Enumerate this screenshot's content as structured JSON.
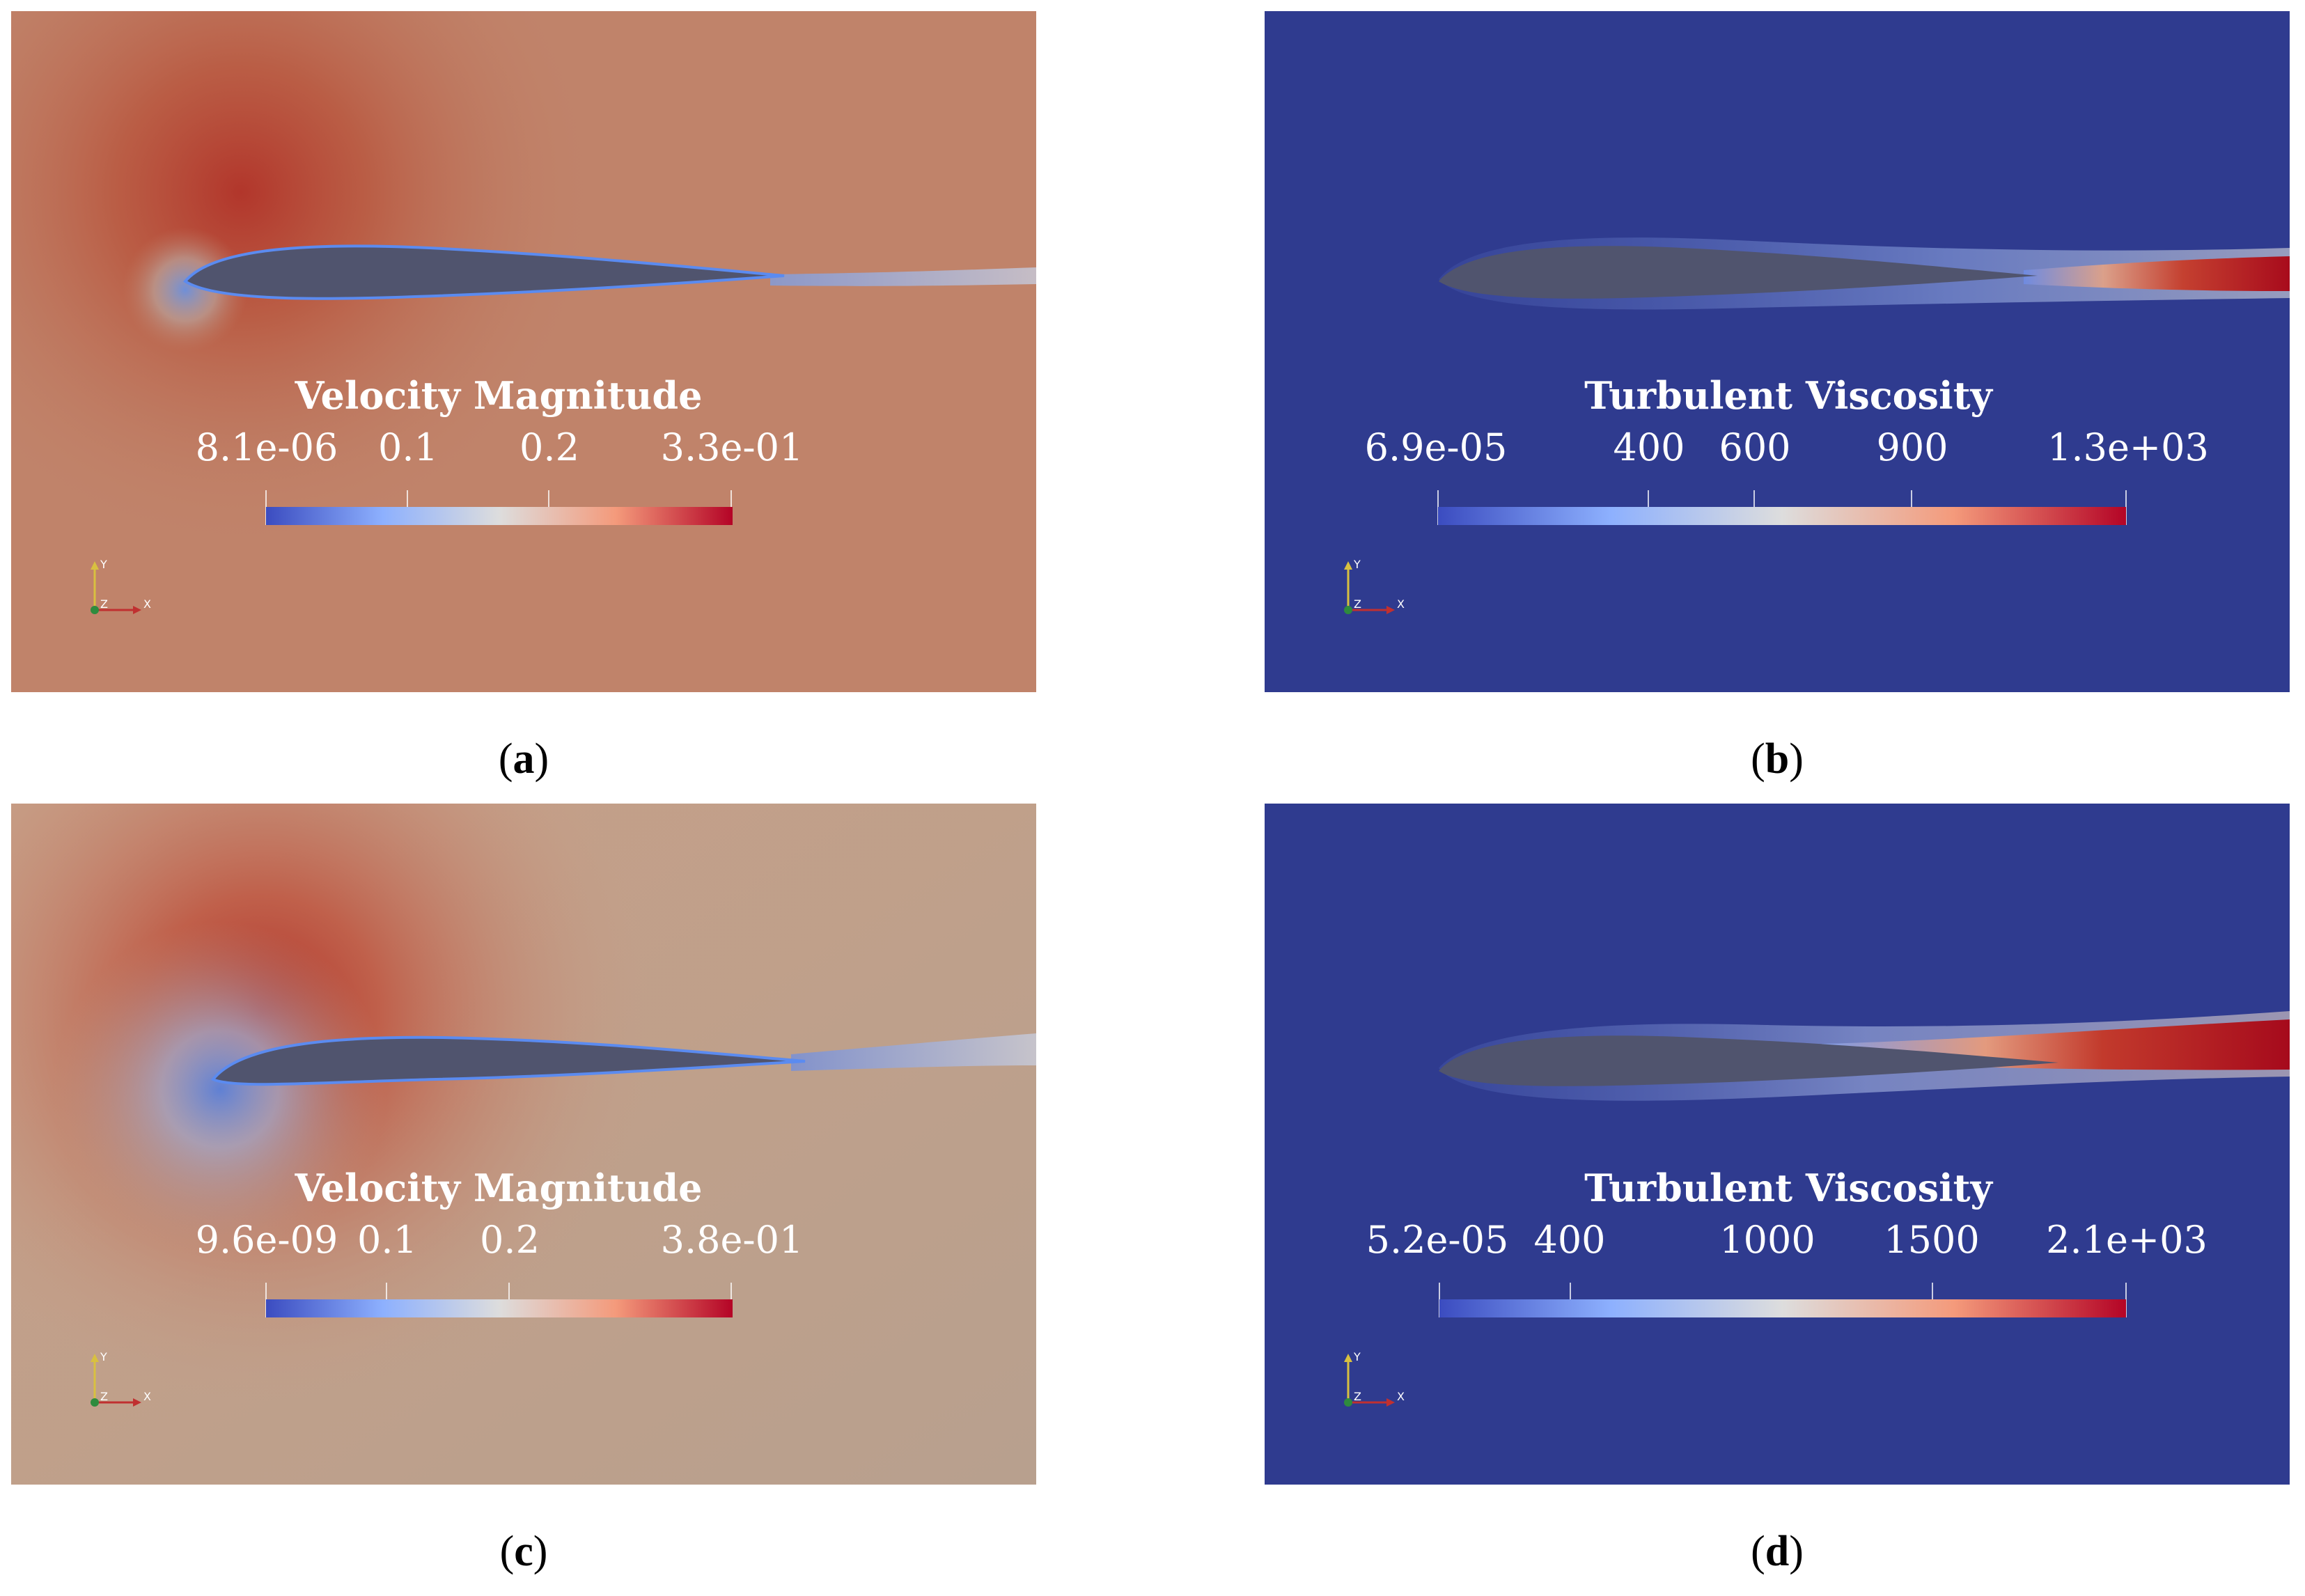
{
  "panels": {
    "a": {
      "caption_letter": "a",
      "colorbar_title": "Velocity Magnitude",
      "ticks": [
        "8.1e-06",
        "0.1",
        "0.2",
        "3.3e-01"
      ],
      "background": "#c0836a"
    },
    "b": {
      "caption_letter": "b",
      "colorbar_title": "Turbulent Viscosity",
      "ticks": [
        "6.9e-05",
        "400",
        "600",
        "900",
        "1.3e+03"
      ],
      "background": "#2f3b8f"
    },
    "c": {
      "caption_letter": "c",
      "colorbar_title": "Velocity Magnitude",
      "ticks": [
        "9.6e-09",
        "0.1",
        "0.2",
        "3.8e-01"
      ],
      "background": "#bba08d"
    },
    "d": {
      "caption_letter": "d",
      "colorbar_title": "Turbulent Viscosity",
      "ticks": [
        "5.2e-05",
        "400",
        "1000",
        "1500",
        "2.1e+03"
      ],
      "background": "#2f3b8f"
    }
  },
  "axis_labels": {
    "x": "X",
    "y": "Y",
    "z": "Z"
  },
  "colormap": [
    "#3b4cc0",
    "#8db0fe",
    "#dddddd",
    "#f49a7b",
    "#b40426"
  ],
  "airfoil_color": "#50546e"
}
